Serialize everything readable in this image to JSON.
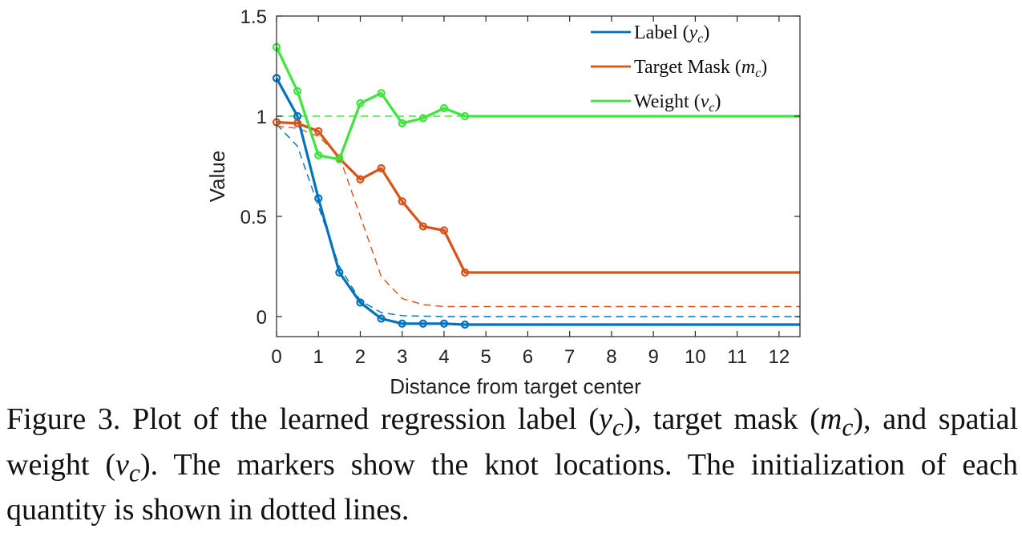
{
  "chart_data": {
    "type": "line",
    "xlabel": "Distance from target center",
    "ylabel": "Value",
    "xlim": [
      0,
      12.5
    ],
    "ylim": [
      -0.1,
      1.5
    ],
    "x_ticks": [
      0,
      1,
      2,
      3,
      4,
      5,
      6,
      7,
      8,
      9,
      10,
      11,
      12
    ],
    "y_ticks": [
      0,
      0.5,
      1,
      1.5
    ],
    "y_tick_labels": [
      "0",
      "0.5",
      "1",
      "1.5"
    ],
    "grid": false,
    "legend_position": "top-right",
    "series": [
      {
        "name": "Label",
        "symbol": "y",
        "subscript": "c",
        "color": "#0072bd",
        "style": "solid-markers",
        "x": [
          0,
          0.5,
          1,
          1.5,
          2,
          2.5,
          3,
          3.5,
          4,
          4.5,
          12.5
        ],
        "y": [
          1.19,
          1.0,
          0.59,
          0.22,
          0.07,
          -0.01,
          -0.035,
          -0.035,
          -0.035,
          -0.04,
          -0.04
        ]
      },
      {
        "name": "Target Mask",
        "symbol": "m",
        "subscript": "c",
        "color": "#d95319",
        "style": "solid-markers",
        "x": [
          0,
          0.5,
          1,
          1.5,
          2,
          2.5,
          3,
          3.5,
          4,
          4.5,
          12.5
        ],
        "y": [
          0.97,
          0.965,
          0.925,
          0.79,
          0.685,
          0.74,
          0.575,
          0.45,
          0.43,
          0.22,
          0.22
        ]
      },
      {
        "name": "Weight",
        "symbol": "v",
        "subscript": "c",
        "color": "#3de63d",
        "style": "solid-markers",
        "x": [
          0,
          0.5,
          1,
          1.5,
          2,
          2.5,
          3,
          3.5,
          4,
          4.5,
          12.5
        ],
        "y": [
          1.345,
          1.125,
          0.805,
          0.785,
          1.065,
          1.115,
          0.965,
          0.99,
          1.04,
          1.0,
          1.0
        ]
      },
      {
        "color": "#0072bd",
        "style": "dashed",
        "x": [
          0,
          0.5,
          1,
          1.5,
          2,
          2.5,
          3,
          4,
          5,
          12.5
        ],
        "y": [
          0.96,
          0.85,
          0.55,
          0.25,
          0.08,
          0.02,
          0.005,
          0.0,
          0.0,
          0.0
        ]
      },
      {
        "color": "#d95319",
        "style": "dashed",
        "x": [
          0,
          0.5,
          1,
          1.5,
          2,
          2.5,
          3,
          3.5,
          4,
          5,
          12.5
        ],
        "y": [
          0.95,
          0.94,
          0.9,
          0.8,
          0.5,
          0.2,
          0.09,
          0.06,
          0.05,
          0.05,
          0.05
        ]
      },
      {
        "color": "#3de63d",
        "style": "dashed",
        "x": [
          0,
          12.5
        ],
        "y": [
          1.0,
          1.0
        ]
      }
    ]
  },
  "caption": {
    "prefix": "Figure 3. Plot of the learned regression label (",
    "sym1": "y",
    "sub1": "c",
    "mid1": "), target mask (",
    "sym2": "m",
    "sub2": "c",
    "mid2": "), and spatial weight (",
    "sym3": "v",
    "sub3": "c",
    "suffix": "). The markers show the knot locations. The initialization of each quantity is shown in dotted lines."
  }
}
